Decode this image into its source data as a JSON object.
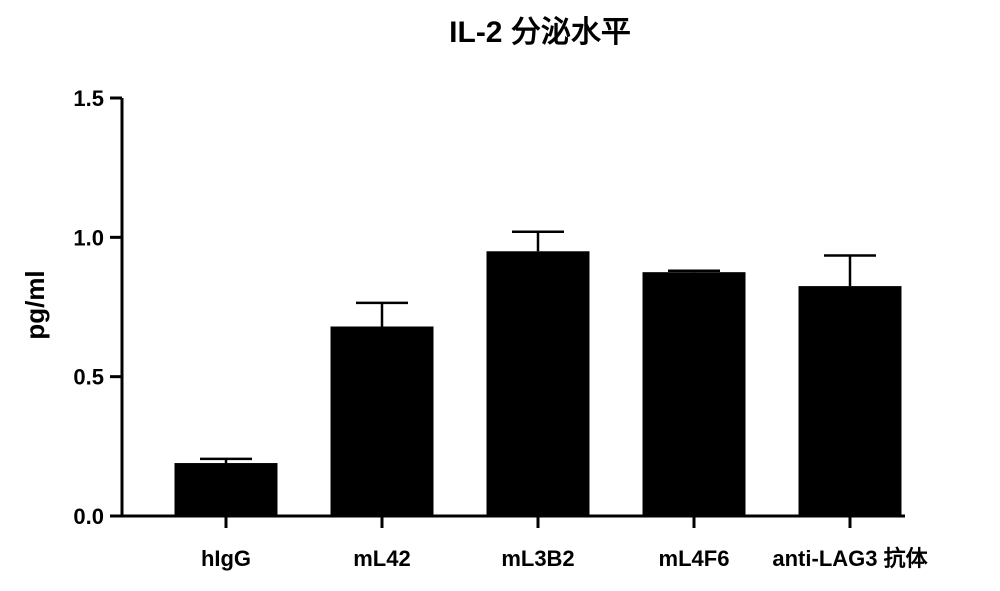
{
  "chart_data": {
    "type": "bar",
    "title": "IL-2 分泌水平",
    "xlabel": "",
    "ylabel": "pg/ml",
    "categories": [
      "hIgG",
      "mL42",
      "mL3B2",
      "mL4F6",
      "anti-LAG3 抗体"
    ],
    "values": [
      0.19,
      0.68,
      0.95,
      0.875,
      0.825
    ],
    "errors": [
      0.015,
      0.085,
      0.07,
      0.005,
      0.11
    ],
    "ylim": [
      0,
      1.5
    ],
    "yticks": [
      "0.0",
      "0.5",
      "1.0",
      "1.5"
    ],
    "grid": false,
    "bar_color": "#000000"
  }
}
